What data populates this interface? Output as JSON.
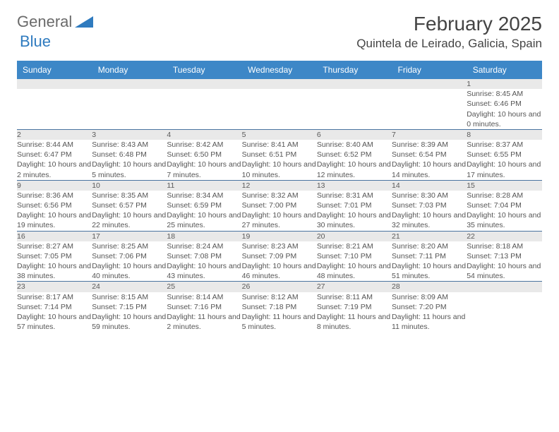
{
  "logo": {
    "general": "General",
    "blue": "Blue"
  },
  "header": {
    "title": "February 2025",
    "location": "Quintela de Leirado, Galicia, Spain"
  },
  "colors": {
    "header_bg": "#3d87c7",
    "header_fg": "#ffffff",
    "daynum_bg": "#e9e9e9",
    "row_divider": "#4a74a0",
    "logo_blue": "#2f7bbf",
    "logo_gray": "#6a6a6a",
    "text": "#555555"
  },
  "day_headers": [
    "Sunday",
    "Monday",
    "Tuesday",
    "Wednesday",
    "Thursday",
    "Friday",
    "Saturday"
  ],
  "weeks": [
    {
      "nums": [
        "",
        "",
        "",
        "",
        "",
        "",
        "1"
      ],
      "cells": [
        "",
        "",
        "",
        "",
        "",
        "",
        "Sunrise: 8:45 AM\nSunset: 6:46 PM\nDaylight: 10 hours and 0 minutes."
      ]
    },
    {
      "nums": [
        "2",
        "3",
        "4",
        "5",
        "6",
        "7",
        "8"
      ],
      "cells": [
        "Sunrise: 8:44 AM\nSunset: 6:47 PM\nDaylight: 10 hours and 2 minutes.",
        "Sunrise: 8:43 AM\nSunset: 6:48 PM\nDaylight: 10 hours and 5 minutes.",
        "Sunrise: 8:42 AM\nSunset: 6:50 PM\nDaylight: 10 hours and 7 minutes.",
        "Sunrise: 8:41 AM\nSunset: 6:51 PM\nDaylight: 10 hours and 10 minutes.",
        "Sunrise: 8:40 AM\nSunset: 6:52 PM\nDaylight: 10 hours and 12 minutes.",
        "Sunrise: 8:39 AM\nSunset: 6:54 PM\nDaylight: 10 hours and 14 minutes.",
        "Sunrise: 8:37 AM\nSunset: 6:55 PM\nDaylight: 10 hours and 17 minutes."
      ]
    },
    {
      "nums": [
        "9",
        "10",
        "11",
        "12",
        "13",
        "14",
        "15"
      ],
      "cells": [
        "Sunrise: 8:36 AM\nSunset: 6:56 PM\nDaylight: 10 hours and 19 minutes.",
        "Sunrise: 8:35 AM\nSunset: 6:57 PM\nDaylight: 10 hours and 22 minutes.",
        "Sunrise: 8:34 AM\nSunset: 6:59 PM\nDaylight: 10 hours and 25 minutes.",
        "Sunrise: 8:32 AM\nSunset: 7:00 PM\nDaylight: 10 hours and 27 minutes.",
        "Sunrise: 8:31 AM\nSunset: 7:01 PM\nDaylight: 10 hours and 30 minutes.",
        "Sunrise: 8:30 AM\nSunset: 7:03 PM\nDaylight: 10 hours and 32 minutes.",
        "Sunrise: 8:28 AM\nSunset: 7:04 PM\nDaylight: 10 hours and 35 minutes."
      ]
    },
    {
      "nums": [
        "16",
        "17",
        "18",
        "19",
        "20",
        "21",
        "22"
      ],
      "cells": [
        "Sunrise: 8:27 AM\nSunset: 7:05 PM\nDaylight: 10 hours and 38 minutes.",
        "Sunrise: 8:25 AM\nSunset: 7:06 PM\nDaylight: 10 hours and 40 minutes.",
        "Sunrise: 8:24 AM\nSunset: 7:08 PM\nDaylight: 10 hours and 43 minutes.",
        "Sunrise: 8:23 AM\nSunset: 7:09 PM\nDaylight: 10 hours and 46 minutes.",
        "Sunrise: 8:21 AM\nSunset: 7:10 PM\nDaylight: 10 hours and 48 minutes.",
        "Sunrise: 8:20 AM\nSunset: 7:11 PM\nDaylight: 10 hours and 51 minutes.",
        "Sunrise: 8:18 AM\nSunset: 7:13 PM\nDaylight: 10 hours and 54 minutes."
      ]
    },
    {
      "nums": [
        "23",
        "24",
        "25",
        "26",
        "27",
        "28",
        ""
      ],
      "cells": [
        "Sunrise: 8:17 AM\nSunset: 7:14 PM\nDaylight: 10 hours and 57 minutes.",
        "Sunrise: 8:15 AM\nSunset: 7:15 PM\nDaylight: 10 hours and 59 minutes.",
        "Sunrise: 8:14 AM\nSunset: 7:16 PM\nDaylight: 11 hours and 2 minutes.",
        "Sunrise: 8:12 AM\nSunset: 7:18 PM\nDaylight: 11 hours and 5 minutes.",
        "Sunrise: 8:11 AM\nSunset: 7:19 PM\nDaylight: 11 hours and 8 minutes.",
        "Sunrise: 8:09 AM\nSunset: 7:20 PM\nDaylight: 11 hours and 11 minutes.",
        ""
      ]
    }
  ]
}
